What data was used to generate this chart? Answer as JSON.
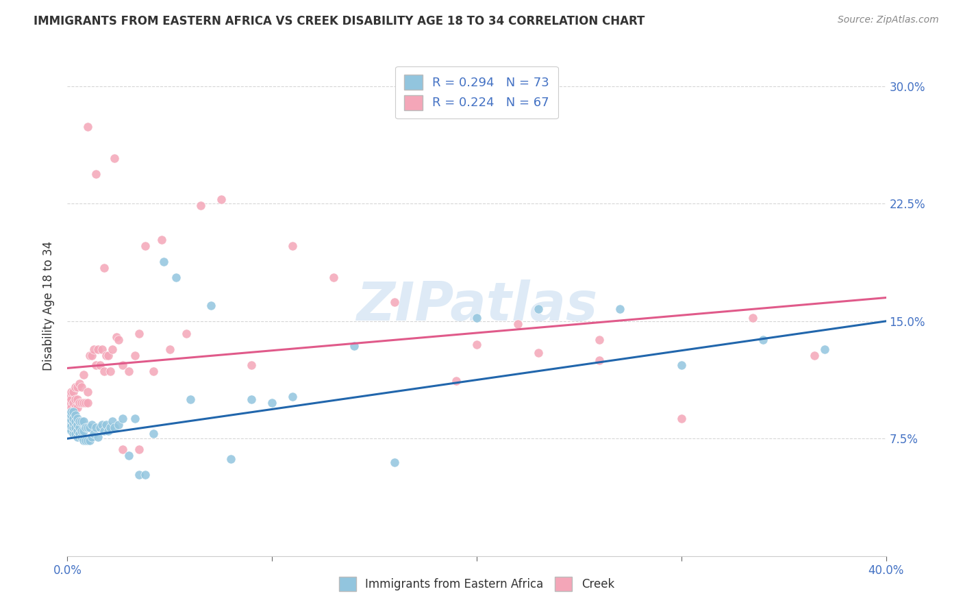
{
  "title": "IMMIGRANTS FROM EASTERN AFRICA VS CREEK DISABILITY AGE 18 TO 34 CORRELATION CHART",
  "source": "Source: ZipAtlas.com",
  "xlabel_label": "Immigrants from Eastern Africa",
  "xlabel2_label": "Creek",
  "ylabel": "Disability Age 18 to 34",
  "xlim": [
    0.0,
    0.4
  ],
  "ylim": [
    0.0,
    0.32
  ],
  "x_ticks": [
    0.0,
    0.1,
    0.2,
    0.3,
    0.4
  ],
  "y_ticks": [
    0.075,
    0.15,
    0.225,
    0.3
  ],
  "y_tick_labels": [
    "7.5%",
    "15.0%",
    "22.5%",
    "30.0%"
  ],
  "r_blue": 0.294,
  "n_blue": 73,
  "r_pink": 0.224,
  "n_pink": 67,
  "blue_color": "#92c5de",
  "pink_color": "#f4a6b8",
  "blue_line_color": "#2166ac",
  "pink_line_color": "#e05a8a",
  "watermark": "ZIPatlas",
  "blue_scatter_x": [
    0.001,
    0.001,
    0.001,
    0.001,
    0.002,
    0.002,
    0.002,
    0.002,
    0.002,
    0.003,
    0.003,
    0.003,
    0.003,
    0.003,
    0.004,
    0.004,
    0.004,
    0.004,
    0.005,
    0.005,
    0.005,
    0.005,
    0.006,
    0.006,
    0.006,
    0.007,
    0.007,
    0.007,
    0.008,
    0.008,
    0.008,
    0.009,
    0.009,
    0.01,
    0.01,
    0.011,
    0.011,
    0.012,
    0.012,
    0.013,
    0.014,
    0.015,
    0.016,
    0.017,
    0.018,
    0.019,
    0.02,
    0.021,
    0.022,
    0.023,
    0.025,
    0.027,
    0.03,
    0.033,
    0.035,
    0.038,
    0.042,
    0.047,
    0.053,
    0.06,
    0.07,
    0.08,
    0.09,
    0.1,
    0.11,
    0.14,
    0.16,
    0.2,
    0.23,
    0.27,
    0.3,
    0.34,
    0.37
  ],
  "blue_scatter_y": [
    0.082,
    0.085,
    0.088,
    0.09,
    0.08,
    0.083,
    0.087,
    0.09,
    0.092,
    0.078,
    0.082,
    0.085,
    0.088,
    0.092,
    0.078,
    0.082,
    0.086,
    0.09,
    0.076,
    0.08,
    0.084,
    0.088,
    0.078,
    0.082,
    0.086,
    0.076,
    0.08,
    0.086,
    0.074,
    0.08,
    0.086,
    0.074,
    0.082,
    0.074,
    0.082,
    0.074,
    0.082,
    0.076,
    0.084,
    0.078,
    0.082,
    0.076,
    0.082,
    0.084,
    0.08,
    0.084,
    0.08,
    0.082,
    0.086,
    0.082,
    0.084,
    0.088,
    0.064,
    0.088,
    0.052,
    0.052,
    0.078,
    0.188,
    0.178,
    0.1,
    0.16,
    0.062,
    0.1,
    0.098,
    0.102,
    0.134,
    0.06,
    0.152,
    0.158,
    0.158,
    0.122,
    0.138,
    0.132
  ],
  "pink_scatter_x": [
    0.001,
    0.001,
    0.002,
    0.002,
    0.002,
    0.003,
    0.003,
    0.003,
    0.004,
    0.004,
    0.004,
    0.005,
    0.005,
    0.005,
    0.006,
    0.006,
    0.007,
    0.007,
    0.008,
    0.008,
    0.009,
    0.01,
    0.01,
    0.011,
    0.012,
    0.013,
    0.014,
    0.015,
    0.016,
    0.017,
    0.018,
    0.019,
    0.02,
    0.021,
    0.022,
    0.024,
    0.025,
    0.027,
    0.03,
    0.033,
    0.035,
    0.038,
    0.042,
    0.046,
    0.05,
    0.058,
    0.065,
    0.075,
    0.09,
    0.11,
    0.13,
    0.16,
    0.19,
    0.22,
    0.26,
    0.3,
    0.335,
    0.365,
    0.01,
    0.014,
    0.018,
    0.023,
    0.027,
    0.035,
    0.2,
    0.23,
    0.26
  ],
  "pink_scatter_y": [
    0.098,
    0.102,
    0.095,
    0.1,
    0.105,
    0.092,
    0.098,
    0.105,
    0.095,
    0.1,
    0.108,
    0.095,
    0.1,
    0.108,
    0.098,
    0.11,
    0.098,
    0.108,
    0.098,
    0.116,
    0.098,
    0.098,
    0.105,
    0.128,
    0.128,
    0.132,
    0.122,
    0.132,
    0.122,
    0.132,
    0.118,
    0.128,
    0.128,
    0.118,
    0.132,
    0.14,
    0.138,
    0.122,
    0.118,
    0.128,
    0.142,
    0.198,
    0.118,
    0.202,
    0.132,
    0.142,
    0.224,
    0.228,
    0.122,
    0.198,
    0.178,
    0.162,
    0.112,
    0.148,
    0.138,
    0.088,
    0.152,
    0.128,
    0.274,
    0.244,
    0.184,
    0.254,
    0.068,
    0.068,
    0.135,
    0.13,
    0.125
  ]
}
